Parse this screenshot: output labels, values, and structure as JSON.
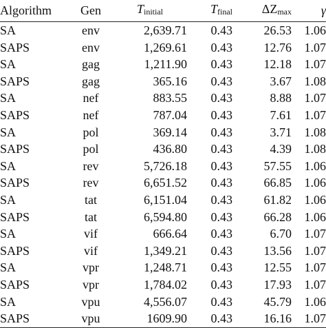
{
  "table": {
    "headers": {
      "algorithm": "Algorithm",
      "gen": "Gen",
      "t_initial_symbol": "T",
      "t_initial_sub": "initial",
      "t_final_symbol": "T",
      "t_final_sub": "final",
      "delta_z_symbol": "ΔZ",
      "delta_z_sub": "max",
      "gamma": "γ"
    },
    "rows": [
      [
        "SA",
        "env",
        "2,639.71",
        "0.43",
        "26.53",
        "1.06"
      ],
      [
        "SAPS",
        "env",
        "1,269.61",
        "0.43",
        "12.76",
        "1.07"
      ],
      [
        "SA",
        "gag",
        "1,211.90",
        "0.43",
        "12.18",
        "1.07"
      ],
      [
        "SAPS",
        "gag",
        "365.16",
        "0.43",
        "3.67",
        "1.08"
      ],
      [
        "SA",
        "nef",
        "883.55",
        "0.43",
        "8.88",
        "1.07"
      ],
      [
        "SAPS",
        "nef",
        "787.04",
        "0.43",
        "7.61",
        "1.07"
      ],
      [
        "SA",
        "pol",
        "369.14",
        "0.43",
        "3.71",
        "1.08"
      ],
      [
        "SAPS",
        "pol",
        "436.80",
        "0.43",
        "4.39",
        "1.08"
      ],
      [
        "SA",
        "rev",
        "5,726.18",
        "0.43",
        "57.55",
        "1.06"
      ],
      [
        "SAPS",
        "rev",
        "6,651.52",
        "0.43",
        "66.85",
        "1.06"
      ],
      [
        "SA",
        "tat",
        "6,151.04",
        "0.43",
        "61.82",
        "1.06"
      ],
      [
        "SAPS",
        "tat",
        "6,594.80",
        "0.43",
        "66.28",
        "1.06"
      ],
      [
        "SA",
        "vif",
        "666.64",
        "0.43",
        "6.70",
        "1.07"
      ],
      [
        "SAPS",
        "vif",
        "1,349.21",
        "0.43",
        "13.56",
        "1.07"
      ],
      [
        "SA",
        "vpr",
        "1,248.71",
        "0.43",
        "12.55",
        "1.07"
      ],
      [
        "SAPS",
        "vpr",
        "1,784.02",
        "0.43",
        "17.93",
        "1.07"
      ],
      [
        "SA",
        "vpu",
        "4,556.07",
        "0.43",
        "45.79",
        "1.06"
      ],
      [
        "SAPS",
        "vpu",
        "1609.90",
        "0.43",
        "16.16",
        "1.07"
      ]
    ]
  }
}
